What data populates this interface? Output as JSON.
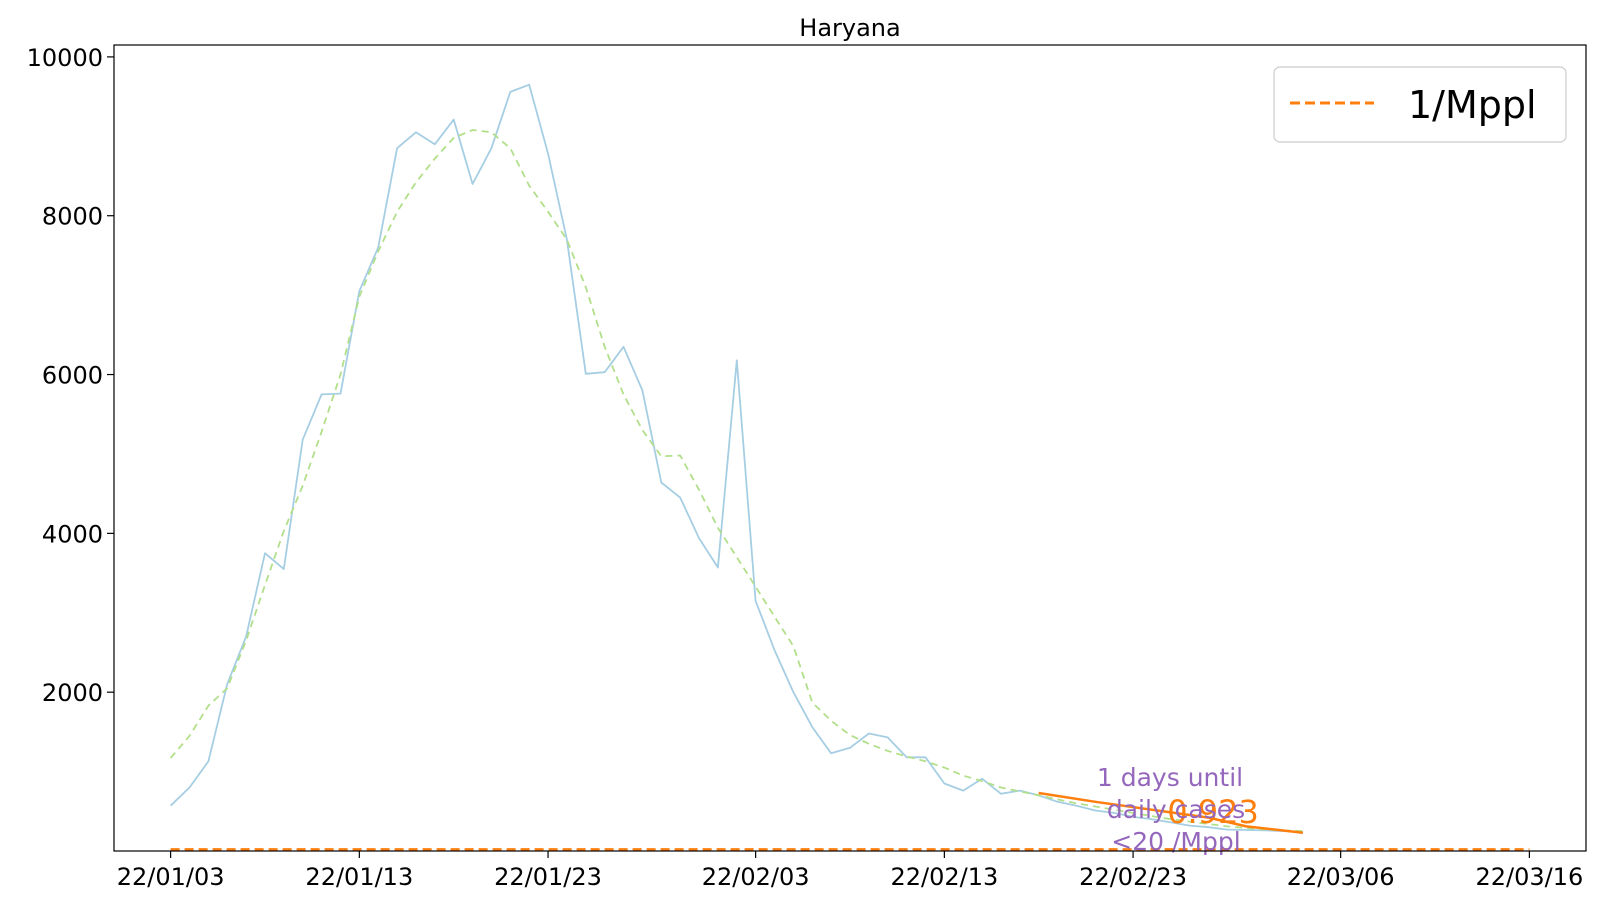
{
  "chart_data": {
    "type": "line",
    "title": "Haryana",
    "xlabel": "",
    "ylabel": "",
    "x_start": "22/01/03",
    "x_ticks": [
      "22/01/03",
      "22/01/13",
      "22/01/23",
      "22/02/03",
      "22/02/13",
      "22/02/23",
      "22/03/06",
      "22/03/16"
    ],
    "y_ticks": [
      2000,
      4000,
      6000,
      8000,
      10000
    ],
    "xlim": [
      "22/01/00",
      "22/03/19"
    ],
    "ylim": [
      0,
      10150
    ],
    "grid": false,
    "legend": {
      "position": "top-right",
      "entries": [
        {
          "label": "1/Mppl",
          "color": "#ff7f0e",
          "style": "dashed"
        }
      ]
    },
    "series": [
      {
        "style": "solid",
        "color": "#a6cee3",
        "x": [
          "22/01/03",
          "22/01/04",
          "22/01/05",
          "22/01/06",
          "22/01/07",
          "22/01/08",
          "22/01/09",
          "22/01/10",
          "22/01/11",
          "22/01/12",
          "22/01/13",
          "22/01/14",
          "22/01/15",
          "22/01/16",
          "22/01/17",
          "22/01/18",
          "22/01/19",
          "22/01/20",
          "22/01/21",
          "22/01/22",
          "22/01/23",
          "22/01/24",
          "22/01/25",
          "22/01/26",
          "22/01/27",
          "22/01/28",
          "22/01/29",
          "22/01/30",
          "22/01/31",
          "22/02/01",
          "22/02/02",
          "22/02/03",
          "22/02/04",
          "22/02/05",
          "22/02/06",
          "22/02/07",
          "22/02/08",
          "22/02/09",
          "22/02/10",
          "22/02/11",
          "22/02/12",
          "22/02/13",
          "22/02/14",
          "22/02/15",
          "22/02/16",
          "22/02/17",
          "22/02/18",
          "22/02/19",
          "22/02/20",
          "22/02/21",
          "22/02/22",
          "22/02/23",
          "22/02/24",
          "22/02/25",
          "22/02/26",
          "22/02/27",
          "22/02/28",
          "22/03/01",
          "22/03/02",
          "22/03/03",
          "22/03/04"
        ],
        "values": [
          570,
          800,
          1130,
          2100,
          2700,
          3750,
          3550,
          5180,
          5750,
          5760,
          7050,
          7600,
          8850,
          9050,
          8900,
          9210,
          8400,
          8850,
          9560,
          9650,
          8780,
          7700,
          6010,
          6030,
          6350,
          5800,
          4640,
          4450,
          3940,
          3570,
          6180,
          3150,
          2530,
          2000,
          1560,
          1230,
          1300,
          1480,
          1430,
          1180,
          1180,
          850,
          760,
          910,
          720,
          760,
          700,
          620,
          570,
          510,
          480,
          430,
          400,
          360,
          320,
          300,
          270,
          265,
          260,
          250,
          240
        ]
      },
      {
        "style": "dashed",
        "color": "#b2df8a",
        "x": [
          "22/01/03",
          "22/01/04",
          "22/01/05",
          "22/01/06",
          "22/01/07",
          "22/01/08",
          "22/01/09",
          "22/01/10",
          "22/01/11",
          "22/01/12",
          "22/01/13",
          "22/01/14",
          "22/01/15",
          "22/01/16",
          "22/01/17",
          "22/01/18",
          "22/01/19",
          "22/01/20",
          "22/01/21",
          "22/01/22",
          "22/01/23",
          "22/01/24",
          "22/01/25",
          "22/01/26",
          "22/01/27",
          "22/01/28",
          "22/01/29",
          "22/01/30",
          "22/01/31",
          "22/02/01",
          "22/02/02",
          "22/02/03",
          "22/02/04",
          "22/02/05",
          "22/02/06",
          "22/02/07",
          "22/02/08",
          "22/02/09",
          "22/02/10",
          "22/02/11",
          "22/02/12",
          "22/02/13",
          "22/02/14",
          "22/02/15",
          "22/02/16",
          "22/02/17",
          "22/02/18",
          "22/02/19",
          "22/02/20",
          "22/02/21",
          "22/02/22",
          "22/02/23",
          "22/02/24",
          "22/02/25",
          "22/02/26",
          "22/02/27",
          "22/02/28",
          "22/03/01",
          "22/03/02",
          "22/03/03",
          "22/03/04"
        ],
        "values": [
          1170,
          1450,
          1830,
          2050,
          2650,
          3350,
          4030,
          4600,
          5280,
          6000,
          6980,
          7550,
          8050,
          8420,
          8720,
          8980,
          9080,
          9050,
          8850,
          8380,
          8050,
          7700,
          7100,
          6350,
          5750,
          5300,
          4970,
          4980,
          4550,
          4070,
          3700,
          3330,
          2950,
          2580,
          1870,
          1640,
          1460,
          1350,
          1260,
          1190,
          1130,
          1050,
          950,
          880,
          800,
          750,
          700,
          650,
          600,
          560,
          520,
          480,
          440,
          400,
          370,
          340,
          310,
          290,
          270,
          260,
          250
        ]
      },
      {
        "style": "solid",
        "color": "#ff7f0e",
        "x": [
          "22/02/18",
          "22/02/21",
          "22/02/24",
          "22/02/27",
          "22/03/01",
          "22/03/04"
        ],
        "values": [
          730,
          620,
          520,
          420,
          310,
          230
        ]
      },
      {
        "style": "dashed",
        "color": "#ff7f0e",
        "x": [
          "22/01/03",
          "22/03/16"
        ],
        "values": [
          20,
          20
        ]
      }
    ],
    "annotations": [
      {
        "text": "1 days until",
        "color": "#9467bd"
      },
      {
        "text": "daily cases",
        "color": "#9467bd"
      },
      {
        "text": "<20 /Mppl",
        "color": "#9467bd"
      },
      {
        "text": "0.923",
        "color": "#ff7f0e"
      }
    ]
  }
}
